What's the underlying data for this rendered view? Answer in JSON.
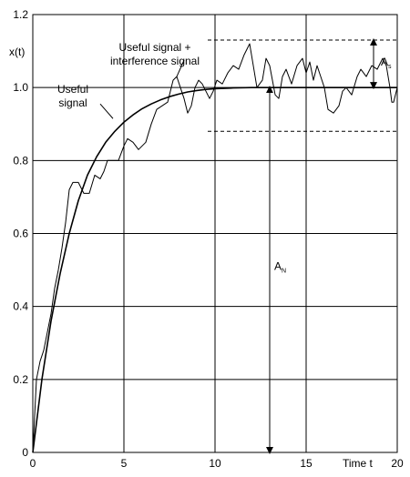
{
  "chart_data": {
    "type": "line",
    "title": "",
    "xlabel": "Time t",
    "ylabel": "x(t)",
    "xlim": [
      0,
      20
    ],
    "ylim": [
      0,
      1.2
    ],
    "grid": true,
    "x_ticks": [
      {
        "v": 0,
        "label": "0"
      },
      {
        "v": 5,
        "label": "5"
      },
      {
        "v": 10,
        "label": "10"
      },
      {
        "v": 15,
        "label": "15"
      },
      {
        "v": 20,
        "label": "20"
      }
    ],
    "y_ticks": [
      {
        "v": 0,
        "label": "0"
      },
      {
        "v": 0.2,
        "label": "0.2"
      },
      {
        "v": 0.4,
        "label": "0.4"
      },
      {
        "v": 0.6,
        "label": "0.6"
      },
      {
        "v": 0.8,
        "label": "0.8"
      },
      {
        "v": 1.0,
        "label": "1.0"
      },
      {
        "v": 1.2,
        "label": "1.2"
      }
    ],
    "series": [
      {
        "name": "Useful signal",
        "style": "smooth",
        "x": [
          0,
          0.5,
          1,
          1.5,
          2,
          2.5,
          3,
          3.5,
          4,
          4.5,
          5,
          5.5,
          6,
          6.5,
          7,
          7.5,
          8,
          8.5,
          9,
          9.5,
          10,
          11,
          12,
          13,
          14,
          15,
          16,
          17,
          18,
          19,
          20
        ],
        "y": [
          0,
          0.2,
          0.36,
          0.49,
          0.6,
          0.69,
          0.76,
          0.81,
          0.85,
          0.88,
          0.905,
          0.925,
          0.942,
          0.955,
          0.966,
          0.975,
          0.982,
          0.988,
          0.992,
          0.995,
          0.997,
          0.999,
          1.0,
          1.0,
          1.0,
          1.0,
          1.0,
          1.0,
          1.0,
          1.0,
          1.0
        ]
      },
      {
        "name": "Useful signal + interference signal",
        "style": "noisy",
        "x": [
          0,
          0.2,
          0.4,
          0.6,
          0.8,
          1.0,
          1.2,
          1.4,
          1.6,
          1.8,
          2.0,
          2.2,
          2.5,
          2.8,
          3.1,
          3.4,
          3.7,
          3.9,
          4.1,
          4.4,
          4.7,
          5.0,
          5.2,
          5.5,
          5.8,
          6.2,
          6.5,
          6.8,
          7.1,
          7.4,
          7.7,
          7.9,
          8.1,
          8.3,
          8.5,
          8.7,
          8.9,
          9.1,
          9.3,
          9.5,
          9.7,
          9.9,
          10.1,
          10.4,
          10.7,
          11.0,
          11.3,
          11.6,
          11.9,
          12.1,
          12.3,
          12.6,
          12.8,
          13.0,
          13.3,
          13.5,
          13.7,
          13.9,
          14.2,
          14.5,
          14.8,
          15.0,
          15.2,
          15.4,
          15.6,
          15.8,
          16.0,
          16.2,
          16.5,
          16.8,
          17.0,
          17.2,
          17.5,
          17.8,
          18.0,
          18.3,
          18.6,
          18.9,
          19.2,
          19.4,
          19.6,
          19.7,
          19.8,
          20.0
        ],
        "y": [
          0,
          0.2,
          0.25,
          0.28,
          0.33,
          0.38,
          0.45,
          0.5,
          0.56,
          0.63,
          0.72,
          0.74,
          0.74,
          0.71,
          0.71,
          0.76,
          0.75,
          0.77,
          0.8,
          0.8,
          0.8,
          0.84,
          0.86,
          0.85,
          0.83,
          0.85,
          0.9,
          0.94,
          0.95,
          0.96,
          1.02,
          1.03,
          1.0,
          0.97,
          0.93,
          0.95,
          1.0,
          1.02,
          1.01,
          0.99,
          0.97,
          0.99,
          1.02,
          1.01,
          1.04,
          1.06,
          1.05,
          1.09,
          1.12,
          1.06,
          1.0,
          1.02,
          1.08,
          1.06,
          0.98,
          0.97,
          1.03,
          1.05,
          1.01,
          1.06,
          1.08,
          1.04,
          1.07,
          1.02,
          1.06,
          1.03,
          1.0,
          0.94,
          0.93,
          0.95,
          0.99,
          1.0,
          0.98,
          1.03,
          1.05,
          1.03,
          1.06,
          1.05,
          1.08,
          1.06,
          1.0,
          0.96,
          0.96,
          1.0
        ]
      }
    ],
    "reference_lines": {
      "upper_dashed": 1.13,
      "lower_dashed": 0.88
    },
    "annotations": [
      {
        "id": "useful",
        "lines": [
          "Useful",
          "signal"
        ],
        "x": 2.2,
        "y": 0.985
      },
      {
        "id": "combined",
        "lines": [
          "Useful signal +",
          "interference signal"
        ],
        "x": 6.7,
        "y": 1.1
      },
      {
        "id": "as",
        "text": "A",
        "sub": "s"
      },
      {
        "id": "an",
        "text": "A",
        "sub": "N"
      }
    ]
  }
}
